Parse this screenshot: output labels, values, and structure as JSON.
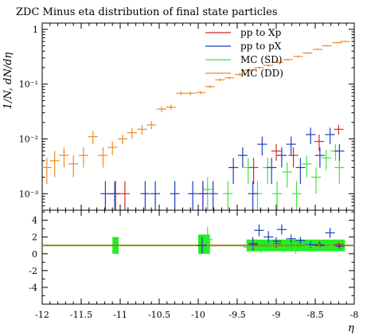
{
  "chart_data": [
    {
      "panel": "main",
      "type": "scatter",
      "title": "ZDC Minus eta distribution of final state particles",
      "xlabel": "η",
      "ylabel": "1/N, dN/dη",
      "xlim": [
        -12,
        -8
      ],
      "ylim": [
        0.0005,
        1.3
      ],
      "yscale": "log",
      "y_tick_labels": [
        "10⁻³",
        "10⁻²",
        "10⁻¹",
        "1"
      ],
      "legend": "top-right",
      "series": [
        {
          "name": "pp to Xp",
          "color": "#d62728",
          "points": [
            {
              "x": -11.06,
              "y": 0.001,
              "yerr": 0.0007
            },
            {
              "x": -10.94,
              "y": 0.001,
              "yerr": 0.0007
            },
            {
              "x": -9.94,
              "y": 0.001,
              "yerr": 0.0007
            },
            {
              "x": -9.29,
              "y": 0.003,
              "yerr": 0.0015
            },
            {
              "x": -9.0,
              "y": 0.006,
              "yerr": 0.002
            },
            {
              "x": -8.78,
              "y": 0.005,
              "yerr": 0.002
            },
            {
              "x": -8.45,
              "y": 0.009,
              "yerr": 0.003
            },
            {
              "x": -8.2,
              "y": 0.015,
              "yerr": 0.003
            }
          ]
        },
        {
          "name": "pp to pX",
          "color": "#1f3fbf",
          "points": [
            {
              "x": -11.19,
              "y": 0.001,
              "yerr": 0.0007
            },
            {
              "x": -11.07,
              "y": 0.001,
              "yerr": 0.0007
            },
            {
              "x": -10.68,
              "y": 0.001,
              "yerr": 0.0007
            },
            {
              "x": -10.55,
              "y": 0.001,
              "yerr": 0.0007
            },
            {
              "x": -10.3,
              "y": 0.001,
              "yerr": 0.0007
            },
            {
              "x": -10.07,
              "y": 0.001,
              "yerr": 0.0007
            },
            {
              "x": -9.94,
              "y": 0.001,
              "yerr": 0.0007
            },
            {
              "x": -9.81,
              "y": 0.001,
              "yerr": 0.0007
            },
            {
              "x": -9.55,
              "y": 0.003,
              "yerr": 0.0015
            },
            {
              "x": -9.43,
              "y": 0.005,
              "yerr": 0.002
            },
            {
              "x": -9.3,
              "y": 0.001,
              "yerr": 0.0007
            },
            {
              "x": -9.18,
              "y": 0.008,
              "yerr": 0.003
            },
            {
              "x": -9.06,
              "y": 0.003,
              "yerr": 0.0015
            },
            {
              "x": -8.93,
              "y": 0.005,
              "yerr": 0.002
            },
            {
              "x": -8.81,
              "y": 0.008,
              "yerr": 0.003
            },
            {
              "x": -8.69,
              "y": 0.003,
              "yerr": 0.0015
            },
            {
              "x": -8.56,
              "y": 0.012,
              "yerr": 0.004
            },
            {
              "x": -8.44,
              "y": 0.005,
              "yerr": 0.002
            },
            {
              "x": -8.31,
              "y": 0.012,
              "yerr": 0.004
            },
            {
              "x": -8.19,
              "y": 0.006,
              "yerr": 0.002
            }
          ]
        },
        {
          "name": "MC (SD)",
          "color": "#3ee33e",
          "points": [
            {
              "x": -9.88,
              "y": 0.0012,
              "yerr": 0.0008
            },
            {
              "x": -9.62,
              "y": 0.001,
              "yerr": 0.0007
            },
            {
              "x": -9.36,
              "y": 0.003,
              "yerr": 0.0015
            },
            {
              "x": -9.24,
              "y": 0.001,
              "yerr": 0.0007
            },
            {
              "x": -9.11,
              "y": 0.003,
              "yerr": 0.0015
            },
            {
              "x": -8.99,
              "y": 0.001,
              "yerr": 0.0007
            },
            {
              "x": -8.86,
              "y": 0.0025,
              "yerr": 0.0012
            },
            {
              "x": -8.74,
              "y": 0.001,
              "yerr": 0.0007
            },
            {
              "x": -8.61,
              "y": 0.0035,
              "yerr": 0.0015
            },
            {
              "x": -8.49,
              "y": 0.002,
              "yerr": 0.001
            },
            {
              "x": -8.36,
              "y": 0.0045,
              "yerr": 0.0018
            },
            {
              "x": -8.24,
              "y": 0.006,
              "yerr": 0.002
            },
            {
              "x": -8.19,
              "y": 0.003,
              "yerr": 0.0015
            }
          ]
        },
        {
          "name": "MC (DD)",
          "color": "#f08a24",
          "points": [
            {
              "x": -11.94,
              "y": 0.003,
              "yerr": 0.0015
            },
            {
              "x": -11.84,
              "y": 0.004,
              "yerr": 0.002
            },
            {
              "x": -11.72,
              "y": 0.005,
              "yerr": 0.002
            },
            {
              "x": -11.6,
              "y": 0.0035,
              "yerr": 0.0015
            },
            {
              "x": -11.47,
              "y": 0.005,
              "yerr": 0.002
            },
            {
              "x": -11.35,
              "y": 0.011,
              "yerr": 0.003
            },
            {
              "x": -11.22,
              "y": 0.005,
              "yerr": 0.002
            },
            {
              "x": -11.1,
              "y": 0.007,
              "yerr": 0.002
            },
            {
              "x": -10.97,
              "y": 0.01,
              "yerr": 0.002
            },
            {
              "x": -10.85,
              "y": 0.013,
              "yerr": 0.003
            },
            {
              "x": -10.72,
              "y": 0.015,
              "yerr": 0.003
            },
            {
              "x": -10.6,
              "y": 0.018,
              "yerr": 0.003
            },
            {
              "x": -10.47,
              "y": 0.035,
              "yerr": 0.004
            },
            {
              "x": -10.35,
              "y": 0.038,
              "yerr": 0.004
            },
            {
              "x": -10.22,
              "y": 0.068,
              "yerr": 0.005
            },
            {
              "x": -10.1,
              "y": 0.068,
              "yerr": 0.005
            },
            {
              "x": -9.97,
              "y": 0.07,
              "yerr": 0.005
            },
            {
              "x": -9.85,
              "y": 0.09,
              "yerr": 0.006
            },
            {
              "x": -9.72,
              "y": 0.12,
              "yerr": 0.007
            },
            {
              "x": -9.6,
              "y": 0.13,
              "yerr": 0.007
            },
            {
              "x": -9.47,
              "y": 0.15,
              "yerr": 0.008
            },
            {
              "x": -9.35,
              "y": 0.18,
              "yerr": 0.009
            },
            {
              "x": -9.22,
              "y": 0.2,
              "yerr": 0.009
            },
            {
              "x": -9.1,
              "y": 0.22,
              "yerr": 0.01
            },
            {
              "x": -8.97,
              "y": 0.25,
              "yerr": 0.01
            },
            {
              "x": -8.85,
              "y": 0.28,
              "yerr": 0.011
            },
            {
              "x": -8.72,
              "y": 0.32,
              "yerr": 0.012
            },
            {
              "x": -8.6,
              "y": 0.37,
              "yerr": 0.012
            },
            {
              "x": -8.47,
              "y": 0.43,
              "yerr": 0.013
            },
            {
              "x": -8.35,
              "y": 0.5,
              "yerr": 0.014
            },
            {
              "x": -8.22,
              "y": 0.57,
              "yerr": 0.015
            },
            {
              "x": -8.12,
              "y": 0.6,
              "yerr": 0.015
            }
          ]
        }
      ]
    },
    {
      "panel": "ratio",
      "type": "scatter",
      "xlabel": "η",
      "xlim": [
        -12,
        -8
      ],
      "ylim": [
        -6,
        5.2
      ],
      "yticks": [
        4,
        2,
        0,
        -2,
        -4
      ],
      "x_tick_labels": [
        "-12",
        "-11.5",
        "-11",
        "-10.5",
        "-10",
        "-9.5",
        "-9",
        "-8.5",
        "-8"
      ],
      "reference_line": 1,
      "reference_color": "#8a8a1a",
      "bands": [
        {
          "x0": -11.1,
          "x1": -11.02,
          "y0": 0.0,
          "y1": 2.0
        },
        {
          "x0": -10.0,
          "x1": -9.85,
          "y0": 0.0,
          "y1": 2.3
        },
        {
          "x0": -9.38,
          "x1": -8.12,
          "y0": 0.3,
          "y1": 1.7
        }
      ],
      "series": [
        {
          "name": "pp to Xp",
          "color": "#d62728",
          "points": [
            {
              "x": -9.3,
              "y": 1.1,
              "yerr": 0.6
            },
            {
              "x": -9.0,
              "y": 1.2,
              "yerr": 0.5
            },
            {
              "x": -8.45,
              "y": 1.1,
              "yerr": 0.4
            },
            {
              "x": -8.2,
              "y": 1.1,
              "yerr": 0.3
            }
          ]
        },
        {
          "name": "pp to pX",
          "color": "#1f3fbf",
          "points": [
            {
              "x": -9.95,
              "y": 1.0,
              "yerr": 1.0
            },
            {
              "x": -9.3,
              "y": 1.2,
              "yerr": 0.8
            },
            {
              "x": -9.22,
              "y": 2.8,
              "yerr": 0.7
            },
            {
              "x": -9.1,
              "y": 2.0,
              "yerr": 0.7
            },
            {
              "x": -9.0,
              "y": 1.5,
              "yerr": 0.5
            },
            {
              "x": -8.93,
              "y": 2.9,
              "yerr": 0.6
            },
            {
              "x": -8.81,
              "y": 1.8,
              "yerr": 0.5
            },
            {
              "x": -8.69,
              "y": 1.6,
              "yerr": 0.4
            },
            {
              "x": -8.56,
              "y": 1.1,
              "yerr": 0.4
            },
            {
              "x": -8.44,
              "y": 1.0,
              "yerr": 0.4
            },
            {
              "x": -8.31,
              "y": 2.5,
              "yerr": 0.6
            },
            {
              "x": -8.19,
              "y": 0.9,
              "yerr": 0.3
            }
          ]
        },
        {
          "name": "MC (SD)",
          "color": "#3ee33e",
          "points": [
            {
              "x": -9.88,
              "y": 1.7,
              "yerr": 1.5
            },
            {
              "x": -9.36,
              "y": 0.8,
              "yerr": 0.6
            },
            {
              "x": -9.2,
              "y": 0.6,
              "yerr": 0.5
            },
            {
              "x": -9.05,
              "y": 1.1,
              "yerr": 0.6
            },
            {
              "x": -8.9,
              "y": 0.7,
              "yerr": 0.5
            },
            {
              "x": -8.75,
              "y": 0.5,
              "yerr": 0.5
            },
            {
              "x": -8.6,
              "y": 0.9,
              "yerr": 0.5
            },
            {
              "x": -8.45,
              "y": 0.8,
              "yerr": 0.4
            },
            {
              "x": -8.3,
              "y": 0.9,
              "yerr": 0.4
            }
          ]
        }
      ]
    }
  ]
}
